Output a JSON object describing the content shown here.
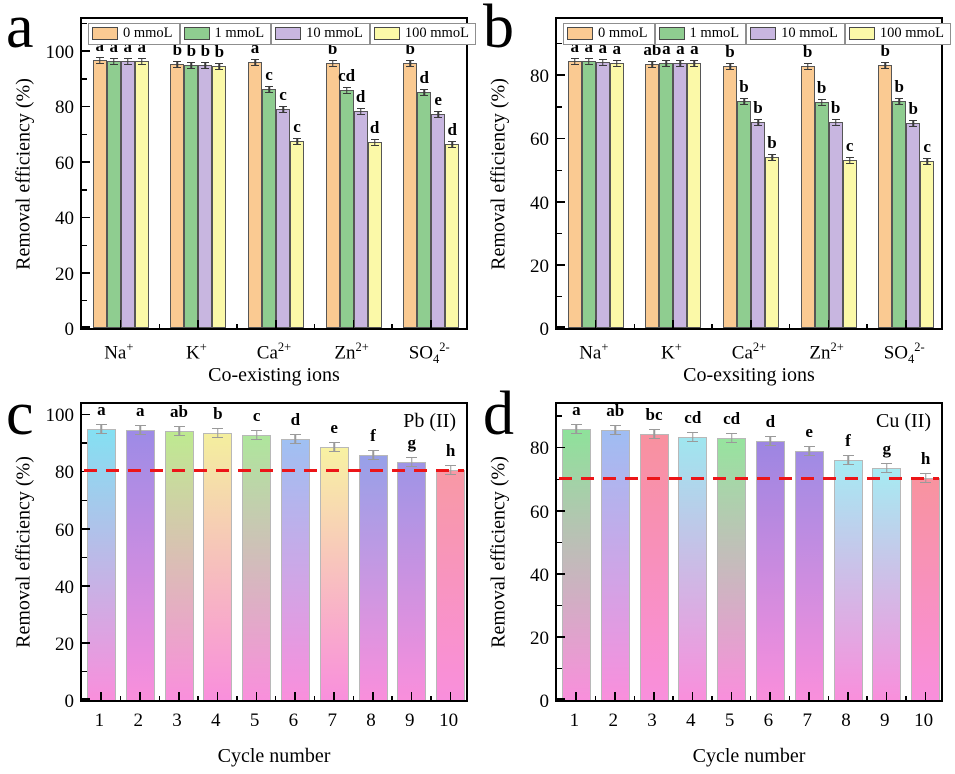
{
  "chart_data": [
    {
      "panel_label": "a",
      "type": "bar",
      "subtype": "grouped",
      "ylabel": "Removal efficiency (%)",
      "xlabel": "Co-existing ions",
      "legend": [
        "0 mmoL",
        "1 mmoL",
        "10 mmoL",
        "100 mmoL"
      ],
      "legend_position": "top-inside",
      "series_colors": [
        "#FACA92",
        "#8FCD90",
        "#C8B6E0",
        "#FBF9A8"
      ],
      "categories": [
        {
          "base": "Na",
          "sup": "+"
        },
        {
          "base": "K",
          "sup": "+"
        },
        {
          "base": "Ca",
          "sup": "2+"
        },
        {
          "base": "Zn",
          "sup": "2+"
        },
        {
          "base": "SO",
          "sub": "4",
          "sup": "2-"
        }
      ],
      "yticks": [
        0,
        20,
        40,
        60,
        80,
        100
      ],
      "ylim": [
        0,
        113
      ],
      "grid": false,
      "error_bar_approx": 0.5,
      "groups": [
        {
          "values": [
            96.6,
            96.5,
            96.4,
            96.3
          ],
          "letters": [
            "a",
            "a",
            "a",
            "a"
          ]
        },
        {
          "values": [
            95.4,
            95.1,
            94.9,
            94.7
          ],
          "letters": [
            "b",
            "b",
            "b",
            "b"
          ]
        },
        {
          "values": [
            96.2,
            86.2,
            79.2,
            67.6
          ],
          "letters": [
            "a",
            "c",
            "c",
            "c"
          ]
        },
        {
          "values": [
            95.8,
            85.9,
            78.3,
            67.1
          ],
          "letters": [
            "b",
            "cd",
            "d",
            "d"
          ]
        },
        {
          "values": [
            95.7,
            85.3,
            77.3,
            66.6
          ],
          "letters": [
            "b",
            "d",
            "e",
            "d"
          ]
        }
      ]
    },
    {
      "panel_label": "b",
      "type": "bar",
      "subtype": "grouped",
      "ylabel": "Removal efficiency (%)",
      "xlabel": "Co-exsiting ions",
      "legend": [
        "0 mmoL",
        "1 mmoL",
        "10 mmoL",
        "100 mmoL"
      ],
      "legend_position": "top-inside",
      "series_colors": [
        "#FACA92",
        "#8FCD90",
        "#C8B6E0",
        "#FBF9A8"
      ],
      "categories": [
        {
          "base": "Na",
          "sup": "+"
        },
        {
          "base": "K",
          "sup": "+"
        },
        {
          "base": "Ca",
          "sup": "2+"
        },
        {
          "base": "Zn",
          "sup": "2+"
        },
        {
          "base": "SO",
          "sub": "4",
          "sup": "2-"
        }
      ],
      "yticks": [
        0,
        20,
        40,
        60,
        80
      ],
      "ylim": [
        0,
        99
      ],
      "grid": false,
      "error_bar_approx": 0.5,
      "groups": [
        {
          "values": [
            84.4,
            84.4,
            84.1,
            83.7
          ],
          "letters": [
            "a",
            "a",
            "a",
            "a"
          ]
        },
        {
          "values": [
            83.6,
            83.7,
            83.9,
            83.8
          ],
          "letters": [
            "ab",
            "a",
            "a",
            "a"
          ]
        },
        {
          "values": [
            83.0,
            71.8,
            65.3,
            54.2
          ],
          "letters": [
            "b",
            "b",
            "b",
            "b"
          ]
        },
        {
          "values": [
            83.0,
            71.6,
            65.1,
            53.3
          ],
          "letters": [
            "b",
            "b",
            "b",
            "c"
          ]
        },
        {
          "values": [
            83.2,
            71.8,
            64.9,
            52.7
          ],
          "letters": [
            "b",
            "b",
            "b",
            "c"
          ]
        }
      ]
    },
    {
      "panel_label": "c",
      "type": "bar",
      "subtype": "gradient-cycle",
      "annotation": "Pb (II)",
      "ylabel": "Removal efficiency (%)",
      "xlabel": "Cycle number",
      "categories": [
        "1",
        "2",
        "3",
        "4",
        "5",
        "6",
        "7",
        "8",
        "9",
        "10"
      ],
      "yticks": [
        0,
        20,
        40,
        60,
        80,
        100
      ],
      "ylim": [
        0,
        105
      ],
      "grid": false,
      "error_bar_approx": 0.6,
      "values": [
        94.8,
        94.4,
        94.3,
        93.6,
        92.8,
        91.4,
        88.6,
        85.8,
        83.2,
        80.6
      ],
      "letters": [
        "a",
        "a",
        "ab",
        "b",
        "c",
        "d",
        "e",
        "f",
        "g",
        "h"
      ],
      "bar_top_colors": [
        "#84E0F2",
        "#9D8BE6",
        "#BEEA90",
        "#F4EF9E",
        "#AEE69C",
        "#9FC0F2",
        "#F8F2A2",
        "#97A0E8",
        "#9E95E6",
        "#F899A5"
      ],
      "bar_bottom_color": "#F98FDC",
      "dashed_line": {
        "y": 80,
        "color": "#EC1518",
        "style": "dashed"
      }
    },
    {
      "panel_label": "d",
      "type": "bar",
      "subtype": "gradient-cycle",
      "annotation": "Cu (II)",
      "ylabel": "Removal efficiency (%)",
      "xlabel": "Cycle number",
      "categories": [
        "1",
        "2",
        "3",
        "4",
        "5",
        "6",
        "7",
        "8",
        "9",
        "10"
      ],
      "yticks": [
        0,
        20,
        40,
        60,
        80
      ],
      "ylim": [
        0,
        95
      ],
      "grid": false,
      "error_bar_approx": 1.0,
      "values": [
        85.8,
        85.4,
        84.3,
        83.2,
        83.0,
        82.0,
        79.0,
        76.1,
        73.4,
        70.4
      ],
      "letters": [
        "a",
        "ab",
        "bc",
        "cd",
        "cd",
        "d",
        "e",
        "f",
        "g",
        "h"
      ],
      "bar_top_colors": [
        "#8EE29A",
        "#9FBDF2",
        "#F8919F",
        "#9FE6EF",
        "#96E49E",
        "#9C86E2",
        "#9F8BE4",
        "#A5EAF3",
        "#A6EBF2",
        "#F8939F"
      ],
      "bar_bottom_color": "#F98FDC",
      "dashed_line": {
        "y": 70,
        "color": "#EC1518",
        "style": "dashed"
      }
    }
  ]
}
